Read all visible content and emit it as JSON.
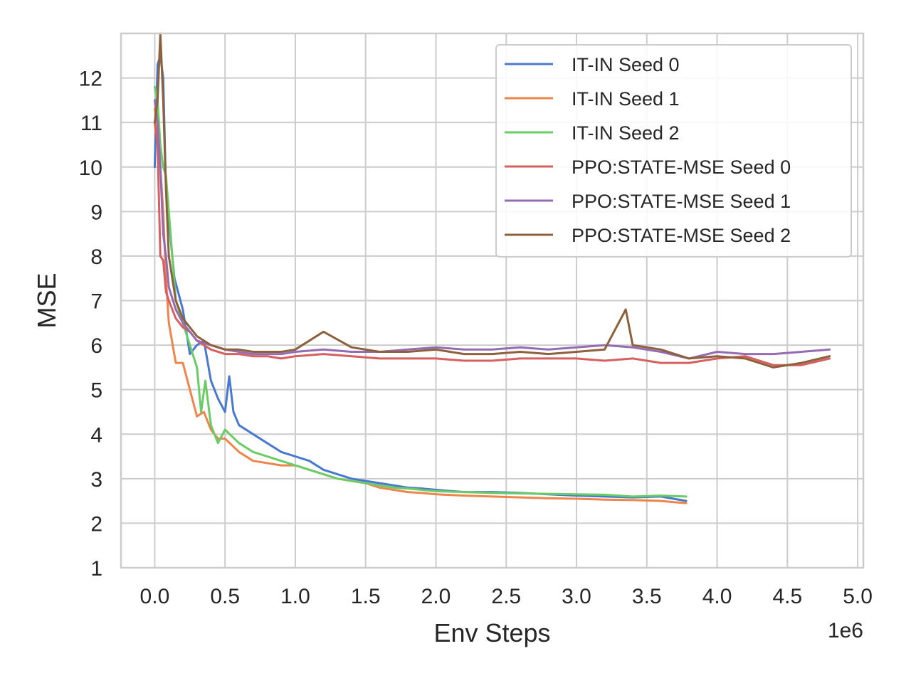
{
  "chart_data": {
    "type": "line",
    "xlabel": "Env Steps",
    "ylabel": "MSE",
    "x_offset_label": "1e6",
    "xlim": [
      -0.24,
      5.04
    ],
    "ylim": [
      1,
      13
    ],
    "x_ticks": [
      0.0,
      0.5,
      1.0,
      1.5,
      2.0,
      2.5,
      3.0,
      3.5,
      4.0,
      4.5,
      5.0
    ],
    "x_tick_labels": [
      "0.0",
      "0.5",
      "1.0",
      "1.5",
      "2.0",
      "2.5",
      "3.0",
      "3.5",
      "4.0",
      "4.5",
      "5.0"
    ],
    "y_ticks": [
      1,
      2,
      3,
      4,
      5,
      6,
      7,
      8,
      9,
      10,
      11,
      12
    ],
    "y_tick_labels": [
      "1",
      "2",
      "3",
      "4",
      "5",
      "6",
      "7",
      "8",
      "9",
      "10",
      "11",
      "12"
    ],
    "grid": true,
    "legend_position": "top-right",
    "series": [
      {
        "name": "IT-IN Seed 0",
        "color": "#4878d0",
        "x": [
          0.0,
          0.02,
          0.04,
          0.06,
          0.08,
          0.1,
          0.14,
          0.2,
          0.25,
          0.3,
          0.35,
          0.4,
          0.45,
          0.5,
          0.53,
          0.56,
          0.6,
          0.7,
          0.8,
          0.9,
          1.0,
          1.1,
          1.2,
          1.3,
          1.4,
          1.5,
          1.6,
          1.7,
          1.8,
          1.9,
          2.0,
          2.2,
          2.4,
          2.6,
          2.8,
          3.0,
          3.2,
          3.4,
          3.6,
          3.78
        ],
        "y": [
          10.0,
          12.3,
          12.5,
          12.0,
          9.5,
          8.8,
          7.5,
          6.8,
          5.8,
          6.0,
          6.1,
          5.2,
          4.8,
          4.5,
          5.3,
          4.5,
          4.2,
          4.0,
          3.8,
          3.6,
          3.5,
          3.4,
          3.2,
          3.1,
          3.0,
          2.95,
          2.9,
          2.85,
          2.8,
          2.78,
          2.75,
          2.7,
          2.7,
          2.68,
          2.65,
          2.62,
          2.6,
          2.58,
          2.6,
          2.5
        ]
      },
      {
        "name": "IT-IN Seed 1",
        "color": "#ee854a",
        "x": [
          0.0,
          0.02,
          0.04,
          0.06,
          0.08,
          0.1,
          0.15,
          0.2,
          0.25,
          0.3,
          0.35,
          0.4,
          0.45,
          0.5,
          0.6,
          0.7,
          0.8,
          0.9,
          1.0,
          1.1,
          1.2,
          1.3,
          1.4,
          1.5,
          1.6,
          1.7,
          1.8,
          1.9,
          2.0,
          2.2,
          2.4,
          2.6,
          2.8,
          3.0,
          3.2,
          3.4,
          3.6,
          3.78
        ],
        "y": [
          11.3,
          10.8,
          10.0,
          9.0,
          7.5,
          6.5,
          5.6,
          5.6,
          5.0,
          4.4,
          4.5,
          4.1,
          3.9,
          3.9,
          3.6,
          3.4,
          3.35,
          3.3,
          3.3,
          3.2,
          3.1,
          3.0,
          2.95,
          2.9,
          2.8,
          2.75,
          2.7,
          2.68,
          2.65,
          2.62,
          2.6,
          2.58,
          2.56,
          2.55,
          2.53,
          2.52,
          2.5,
          2.45
        ]
      },
      {
        "name": "IT-IN Seed 2",
        "color": "#6acc64",
        "x": [
          0.0,
          0.02,
          0.04,
          0.06,
          0.08,
          0.1,
          0.15,
          0.2,
          0.25,
          0.3,
          0.33,
          0.36,
          0.4,
          0.45,
          0.5,
          0.6,
          0.7,
          0.8,
          0.9,
          1.0,
          1.1,
          1.2,
          1.3,
          1.4,
          1.5,
          1.6,
          1.7,
          1.8,
          1.9,
          2.0,
          2.2,
          2.4,
          2.6,
          2.8,
          3.0,
          3.2,
          3.4,
          3.6,
          3.78
        ],
        "y": [
          11.8,
          11.5,
          10.5,
          10.0,
          9.8,
          9.0,
          7.0,
          6.5,
          6.0,
          5.5,
          4.5,
          5.2,
          4.2,
          3.8,
          4.1,
          3.8,
          3.6,
          3.5,
          3.4,
          3.3,
          3.2,
          3.1,
          3.0,
          2.95,
          2.9,
          2.85,
          2.8,
          2.78,
          2.75,
          2.72,
          2.7,
          2.68,
          2.67,
          2.66,
          2.65,
          2.64,
          2.6,
          2.62,
          2.6
        ]
      },
      {
        "name": "PPO:STATE-MSE Seed 0",
        "color": "#d65f5f",
        "x": [
          0.0,
          0.02,
          0.04,
          0.06,
          0.08,
          0.1,
          0.15,
          0.2,
          0.25,
          0.3,
          0.4,
          0.5,
          0.6,
          0.7,
          0.8,
          0.9,
          1.0,
          1.2,
          1.4,
          1.6,
          1.8,
          2.0,
          2.2,
          2.4,
          2.6,
          2.8,
          3.0,
          3.2,
          3.4,
          3.6,
          3.8,
          4.0,
          4.2,
          4.4,
          4.6,
          4.8
        ],
        "y": [
          11.0,
          10.5,
          8.0,
          7.9,
          7.2,
          7.0,
          6.6,
          6.4,
          6.3,
          6.1,
          5.9,
          5.8,
          5.8,
          5.75,
          5.75,
          5.7,
          5.75,
          5.8,
          5.75,
          5.7,
          5.7,
          5.7,
          5.65,
          5.65,
          5.7,
          5.7,
          5.7,
          5.65,
          5.7,
          5.6,
          5.6,
          5.7,
          5.75,
          5.55,
          5.55,
          5.7
        ]
      },
      {
        "name": "PPO:STATE-MSE Seed 1",
        "color": "#956cb4",
        "x": [
          0.0,
          0.02,
          0.04,
          0.06,
          0.08,
          0.1,
          0.15,
          0.2,
          0.25,
          0.3,
          0.4,
          0.5,
          0.6,
          0.7,
          0.8,
          0.9,
          1.0,
          1.2,
          1.4,
          1.6,
          1.8,
          2.0,
          2.2,
          2.4,
          2.6,
          2.8,
          3.0,
          3.2,
          3.4,
          3.6,
          3.8,
          4.0,
          4.2,
          4.4,
          4.6,
          4.8
        ],
        "y": [
          11.5,
          11.0,
          10.0,
          8.5,
          8.0,
          7.3,
          6.8,
          6.5,
          6.3,
          6.1,
          6.0,
          5.9,
          5.85,
          5.8,
          5.8,
          5.8,
          5.85,
          5.9,
          5.85,
          5.85,
          5.9,
          5.95,
          5.9,
          5.9,
          5.95,
          5.9,
          5.95,
          6.0,
          5.95,
          5.85,
          5.7,
          5.85,
          5.8,
          5.8,
          5.85,
          5.9
        ]
      },
      {
        "name": "PPO:STATE-MSE Seed 2",
        "color": "#8c613c",
        "x": [
          0.0,
          0.02,
          0.04,
          0.06,
          0.08,
          0.1,
          0.15,
          0.2,
          0.25,
          0.3,
          0.4,
          0.5,
          0.6,
          0.7,
          0.8,
          0.9,
          1.0,
          1.1,
          1.2,
          1.4,
          1.6,
          1.8,
          2.0,
          2.2,
          2.4,
          2.6,
          2.8,
          3.0,
          3.2,
          3.35,
          3.4,
          3.6,
          3.8,
          4.0,
          4.2,
          4.4,
          4.6,
          4.8
        ],
        "y": [
          11.0,
          11.5,
          13.0,
          11.5,
          9.5,
          8.0,
          7.0,
          6.6,
          6.4,
          6.2,
          6.0,
          5.9,
          5.9,
          5.85,
          5.85,
          5.85,
          5.9,
          6.1,
          6.3,
          5.95,
          5.85,
          5.85,
          5.9,
          5.8,
          5.8,
          5.85,
          5.8,
          5.85,
          5.9,
          6.8,
          6.0,
          5.9,
          5.7,
          5.75,
          5.7,
          5.5,
          5.6,
          5.75
        ]
      }
    ]
  }
}
